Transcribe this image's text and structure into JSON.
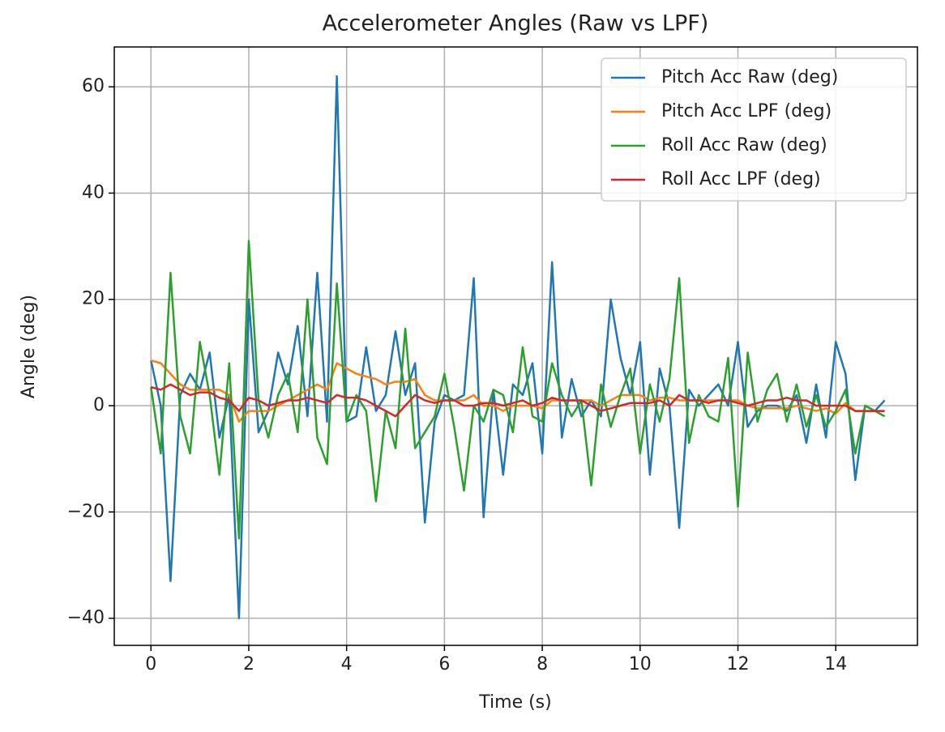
{
  "chart_data": {
    "type": "line",
    "title": "Accelerometer Angles (Raw vs LPF)",
    "x_label": "Time (s)",
    "y_label": "Angle (deg)",
    "x": [
      0,
      0.2,
      0.4,
      0.6,
      0.8,
      1.0,
      1.2,
      1.4,
      1.6,
      1.8,
      2.0,
      2.2,
      2.4,
      2.6,
      2.8,
      3.0,
      3.2,
      3.4,
      3.6,
      3.8,
      4.0,
      4.2,
      4.4,
      4.6,
      4.8,
      5.0,
      5.2,
      5.4,
      5.6,
      5.8,
      6.0,
      6.2,
      6.4,
      6.6,
      6.8,
      7.0,
      7.2,
      7.4,
      7.6,
      7.8,
      8.0,
      8.2,
      8.4,
      8.6,
      8.8,
      9.0,
      9.2,
      9.4,
      9.6,
      9.8,
      10.0,
      10.2,
      10.4,
      10.6,
      10.8,
      11.0,
      11.2,
      11.4,
      11.6,
      11.8,
      12.0,
      12.2,
      12.4,
      12.6,
      12.8,
      13.0,
      13.2,
      13.4,
      13.6,
      13.8,
      14.0,
      14.2,
      14.4,
      14.6,
      14.8,
      15.0
    ],
    "series": [
      {
        "name": "Pitch Acc Raw (deg)",
        "color": "#1f77b4",
        "values": [
          8.5,
          0,
          -33,
          2,
          6,
          3,
          10,
          -6,
          2,
          -40,
          20,
          -5,
          -1,
          10,
          4,
          15,
          -2,
          25,
          -3,
          62,
          -3,
          -2,
          11,
          -1,
          2,
          14,
          2,
          8,
          -22,
          -3,
          2,
          1,
          2,
          24,
          -21,
          3,
          -13,
          4,
          2,
          8,
          -9,
          27,
          -6,
          5,
          -2,
          1,
          -2,
          20,
          9,
          2,
          12,
          -13,
          7,
          0,
          -23,
          3,
          0,
          2,
          4,
          0,
          12,
          -4,
          -1,
          0,
          0,
          -1,
          2,
          -7,
          4,
          -6,
          12,
          6,
          -14,
          0,
          -1,
          1
        ]
      },
      {
        "name": "Pitch Acc LPF (deg)",
        "color": "#ff7f0e",
        "values": [
          8.5,
          8,
          6,
          4,
          3,
          3,
          3,
          3,
          2,
          -3,
          -1,
          -1,
          -1,
          0,
          1,
          2,
          3,
          4,
          3,
          8,
          7,
          6,
          5.5,
          5,
          4,
          4.5,
          4.5,
          5,
          2,
          1,
          1,
          1,
          1,
          2,
          0,
          0,
          -1,
          0,
          0,
          0,
          -0.5,
          1,
          1,
          1,
          1,
          1,
          0,
          1,
          2,
          2,
          2,
          1,
          1.5,
          1.5,
          1,
          1,
          1,
          1,
          1,
          1,
          1,
          0,
          -0.5,
          -0.5,
          -0.5,
          -0.5,
          0,
          -0.5,
          -1,
          -0.5,
          -1.5,
          0.5,
          -1,
          -1,
          -1,
          -1
        ]
      },
      {
        "name": "Roll Acc Raw (deg)",
        "color": "#2ca02c",
        "values": [
          3.5,
          -9,
          25,
          -2,
          -9,
          12,
          2,
          -13,
          8,
          -25,
          31,
          1,
          -6,
          2,
          6,
          -5,
          20,
          -6,
          -11,
          23,
          -3,
          2,
          -1,
          -18,
          -1,
          -8,
          14.5,
          -8,
          -5,
          -2,
          6,
          -4,
          -16,
          0,
          -3,
          3,
          2,
          -5,
          11,
          -2,
          -3,
          8,
          2,
          -2,
          1,
          -15,
          4,
          -4,
          2,
          7,
          -9,
          4,
          -3,
          5,
          24,
          -7,
          2,
          -2,
          -3,
          9,
          -19,
          10,
          -3,
          3,
          6,
          -3,
          4,
          -4,
          2,
          -4,
          -1,
          3,
          -9,
          0,
          -1,
          -2
        ]
      },
      {
        "name": "Roll Acc LPF (deg)",
        "color": "#d62728",
        "values": [
          3.5,
          3,
          4,
          3,
          2,
          2.5,
          2.5,
          1.5,
          1,
          -1,
          1.5,
          1,
          0,
          0.5,
          1,
          1,
          1.5,
          1,
          0.5,
          2,
          1.5,
          1.5,
          1,
          0,
          -1,
          -2,
          0,
          2,
          1,
          0.5,
          1,
          1,
          0,
          0,
          0.5,
          0.5,
          0,
          0.5,
          1,
          0,
          0.5,
          1.5,
          1,
          1,
          1,
          0,
          -1,
          -0.5,
          0,
          0.5,
          0.5,
          0.5,
          1,
          0,
          2,
          1,
          1,
          0.5,
          1,
          1,
          0.5,
          0,
          0.5,
          1,
          1,
          1.5,
          1,
          1,
          0,
          0,
          0,
          0,
          -1,
          -1,
          -1,
          -1
        ]
      }
    ],
    "xlim": [
      -0.75,
      15.67
    ],
    "ylim": [
      -45.1,
      67.5
    ],
    "xticks": [
      0,
      2,
      4,
      6,
      8,
      10,
      12,
      14
    ],
    "yticks": [
      {
        "value": -40,
        "label": "−40"
      },
      {
        "value": -20,
        "label": "−20"
      },
      0,
      20,
      40,
      60
    ],
    "grid": true,
    "legend": "upper right"
  }
}
